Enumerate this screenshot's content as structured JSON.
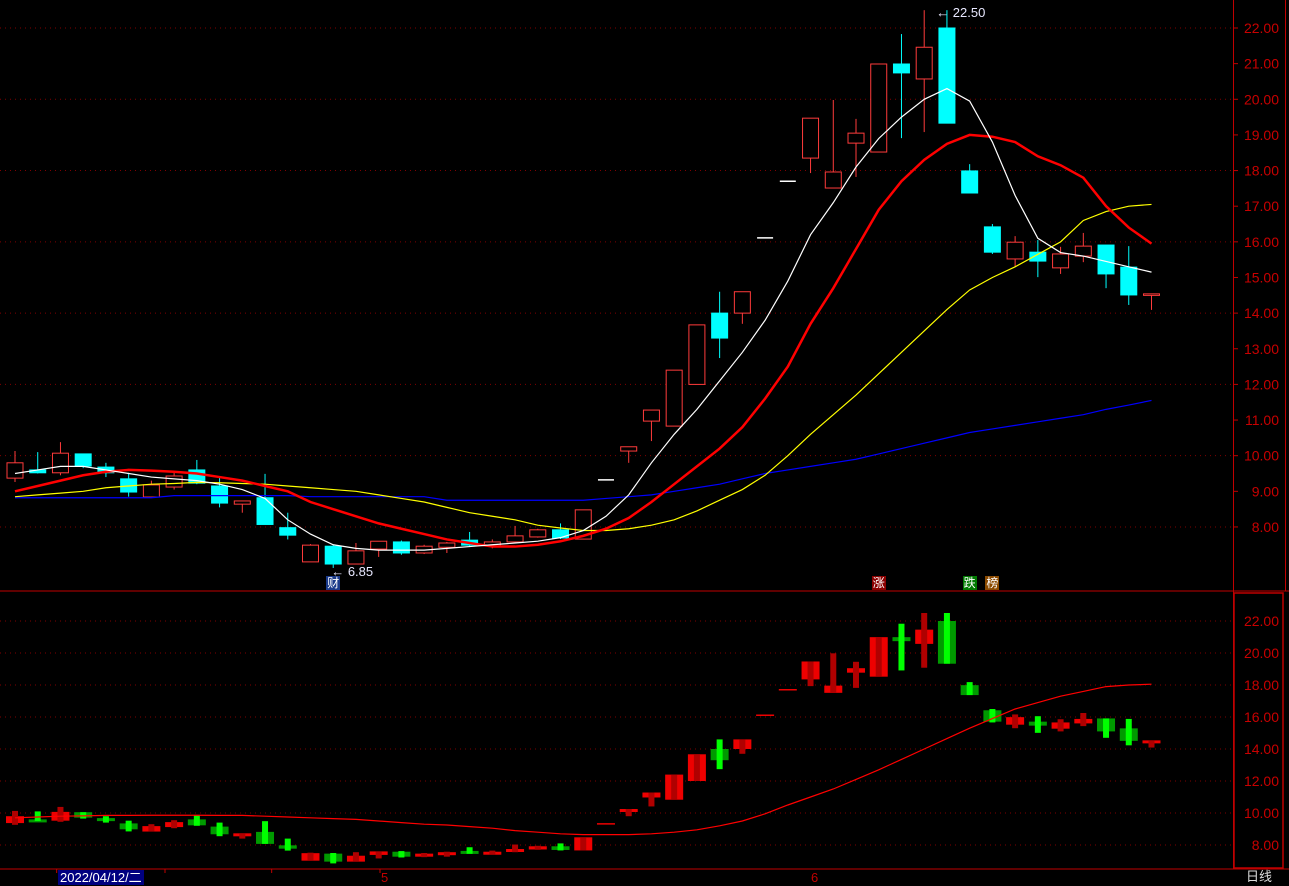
{
  "chart_data": {
    "type": "candlestick",
    "upper_axis": {
      "ticks": [
        "22.00",
        "21.00",
        "20.00",
        "19.00",
        "18.00",
        "17.00",
        "16.00",
        "15.00",
        "14.00",
        "13.00",
        "12.00",
        "11.00",
        "10.00",
        "9.00",
        "8.00"
      ],
      "ylim": [
        6.5,
        22.8
      ]
    },
    "lower_axis": {
      "ticks": [
        "22.00",
        "20.00",
        "18.00",
        "16.00",
        "14.00",
        "12.00",
        "10.00",
        "8.00"
      ],
      "ylim": [
        6.9,
        23.8
      ]
    },
    "x_labels": {
      "selected_date": "2022/04/12/二",
      "month_5": "5",
      "month_6": "6"
    },
    "period": "日线",
    "annotations": {
      "high_label": "22.50",
      "low_label": "6.85"
    },
    "badges": [
      {
        "text": "财",
        "color": "#1a3a8a",
        "index": 14
      },
      {
        "text": "涨",
        "color": "#8b0000",
        "index": 38
      },
      {
        "text": "跌",
        "color": "#007a00",
        "index": 42
      },
      {
        "text": "榜",
        "color": "#8b4a00",
        "index": 43
      }
    ],
    "colors": {
      "up": "#ff3b3b",
      "down": "#00ffff",
      "flat": "#ffffff",
      "ma5": "#ffffff",
      "ma10": "#ff0000",
      "ma20": "#ffff00",
      "ma60": "#0000ff",
      "grid": "#800000",
      "axis": "#c00000",
      "lower_up": "#ee0000",
      "lower_up_dark": "#b00000",
      "lower_down": "#009a00",
      "lower_down_bright": "#00ff00",
      "lower_line": "#ff0000"
    },
    "ohlc": [
      [
        9.37,
        10.13,
        9.26,
        9.8
      ],
      [
        9.6,
        10.1,
        9.5,
        9.52
      ],
      [
        9.52,
        10.38,
        9.45,
        10.07
      ],
      [
        10.05,
        10.05,
        9.65,
        9.71
      ],
      [
        9.68,
        9.8,
        9.4,
        9.52
      ],
      [
        9.35,
        9.52,
        8.85,
        8.98
      ],
      [
        8.84,
        9.3,
        8.84,
        9.18
      ],
      [
        9.12,
        9.55,
        9.05,
        9.43
      ],
      [
        9.6,
        9.88,
        9.2,
        9.23
      ],
      [
        9.15,
        9.4,
        8.55,
        8.67
      ],
      [
        8.64,
        8.73,
        8.4,
        8.73
      ],
      [
        8.82,
        9.49,
        8.07,
        8.07
      ],
      [
        7.98,
        8.4,
        7.65,
        7.77
      ],
      [
        7.02,
        7.52,
        7.02,
        7.49
      ],
      [
        7.46,
        7.5,
        6.85,
        6.96
      ],
      [
        6.96,
        7.55,
        6.96,
        7.33
      ],
      [
        7.38,
        7.6,
        7.16,
        7.6
      ],
      [
        7.58,
        7.62,
        7.22,
        7.27
      ],
      [
        7.27,
        7.5,
        7.24,
        7.46
      ],
      [
        7.43,
        7.58,
        7.27,
        7.55
      ],
      [
        7.63,
        7.86,
        7.45,
        7.49
      ],
      [
        7.47,
        7.65,
        7.4,
        7.58
      ],
      [
        7.58,
        8.03,
        7.55,
        7.75
      ],
      [
        7.72,
        7.95,
        7.7,
        7.92
      ],
      [
        7.92,
        8.1,
        7.66,
        7.69
      ],
      [
        7.66,
        8.48,
        7.66,
        8.48
      ],
      [
        9.32,
        9.32,
        9.32,
        9.32
      ],
      [
        10.13,
        10.25,
        9.8,
        10.25
      ],
      [
        10.97,
        11.28,
        10.41,
        11.28
      ],
      [
        10.83,
        12.4,
        10.83,
        12.4
      ],
      [
        12.0,
        13.67,
        12.0,
        13.67
      ],
      [
        14.0,
        14.6,
        12.74,
        13.3
      ],
      [
        14.0,
        14.6,
        13.7,
        14.6
      ],
      [
        16.11,
        16.11,
        16.11,
        16.11
      ],
      [
        17.7,
        17.7,
        17.7,
        17.7
      ],
      [
        18.35,
        19.47,
        17.93,
        19.47
      ],
      [
        17.51,
        19.98,
        17.51,
        17.96
      ],
      [
        18.77,
        19.45,
        17.82,
        19.05
      ],
      [
        18.52,
        20.99,
        18.52,
        20.99
      ],
      [
        20.99,
        21.83,
        18.91,
        20.74
      ],
      [
        20.57,
        22.5,
        19.08,
        21.46
      ],
      [
        22.0,
        22.5,
        19.33,
        19.33
      ],
      [
        17.99,
        18.18,
        17.37,
        17.37
      ],
      [
        16.42,
        16.5,
        15.66,
        15.71
      ],
      [
        15.52,
        16.16,
        15.3,
        15.99
      ],
      [
        15.71,
        16.05,
        15.01,
        15.46
      ],
      [
        15.27,
        15.86,
        15.1,
        15.66
      ],
      [
        15.6,
        16.25,
        15.43,
        15.88
      ],
      [
        15.91,
        15.91,
        14.7,
        15.1
      ],
      [
        15.29,
        15.88,
        14.23,
        14.51
      ],
      [
        14.54,
        14.54,
        14.09,
        14.54
      ]
    ],
    "ma5": [
      9.5,
      9.6,
      9.7,
      9.7,
      9.6,
      9.5,
      9.4,
      9.35,
      9.3,
      9.2,
      9.05,
      8.8,
      8.2,
      7.8,
      7.5,
      7.4,
      7.35,
      7.35,
      7.35,
      7.4,
      7.45,
      7.5,
      7.55,
      7.6,
      7.7,
      7.9,
      8.3,
      8.9,
      9.8,
      10.6,
      11.3,
      12.1,
      12.9,
      13.8,
      14.9,
      16.2,
      17.1,
      18.1,
      18.9,
      19.5,
      20.0,
      20.3,
      19.95,
      18.8,
      17.3,
      16.1,
      15.7,
      15.6,
      15.45,
      15.3,
      15.15
    ],
    "ma10": [
      9.0,
      9.15,
      9.3,
      9.45,
      9.55,
      9.6,
      9.58,
      9.55,
      9.5,
      9.4,
      9.3,
      9.15,
      9.0,
      8.7,
      8.5,
      8.3,
      8.1,
      7.95,
      7.8,
      7.65,
      7.55,
      7.45,
      7.45,
      7.5,
      7.6,
      7.75,
      7.95,
      8.25,
      8.7,
      9.2,
      9.7,
      10.2,
      10.8,
      11.6,
      12.5,
      13.7,
      14.7,
      15.8,
      16.9,
      17.7,
      18.3,
      18.75,
      19.0,
      18.95,
      18.8,
      18.4,
      18.15,
      17.8,
      17.0,
      16.4,
      15.95
    ],
    "ma20": [
      8.85,
      8.9,
      8.95,
      9.0,
      9.1,
      9.15,
      9.2,
      9.22,
      9.25,
      9.24,
      9.22,
      9.2,
      9.15,
      9.1,
      9.05,
      9.0,
      8.9,
      8.8,
      8.7,
      8.55,
      8.4,
      8.3,
      8.2,
      8.05,
      7.97,
      7.9,
      7.9,
      7.95,
      8.05,
      8.2,
      8.45,
      8.75,
      9.05,
      9.45,
      10.0,
      10.6,
      11.15,
      11.7,
      12.3,
      12.9,
      13.5,
      14.1,
      14.65,
      15.0,
      15.3,
      15.65,
      16.0,
      16.6,
      16.85,
      17.0,
      17.05
    ],
    "ma60": [
      8.82,
      8.82,
      8.82,
      8.82,
      8.82,
      8.82,
      8.82,
      8.88,
      8.88,
      8.88,
      8.88,
      8.88,
      8.88,
      8.85,
      8.85,
      8.85,
      8.85,
      8.85,
      8.85,
      8.75,
      8.75,
      8.75,
      8.75,
      8.75,
      8.75,
      8.75,
      8.8,
      8.85,
      8.9,
      9.0,
      9.1,
      9.2,
      9.35,
      9.5,
      9.6,
      9.7,
      9.8,
      9.9,
      10.05,
      10.2,
      10.35,
      10.5,
      10.65,
      10.75,
      10.85,
      10.95,
      11.05,
      11.15,
      11.3,
      11.42,
      11.55
    ],
    "lower_line": [
      9.7,
      9.75,
      9.8,
      9.82,
      9.85,
      9.85,
      9.86,
      9.86,
      9.86,
      9.85,
      9.85,
      9.8,
      9.75,
      9.7,
      9.65,
      9.6,
      9.5,
      9.4,
      9.3,
      9.25,
      9.15,
      9.05,
      8.9,
      8.8,
      8.7,
      8.65,
      8.65,
      8.65,
      8.7,
      8.8,
      8.95,
      9.2,
      9.5,
      9.95,
      10.5,
      11.0,
      11.5,
      12.1,
      12.7,
      13.35,
      14.0,
      14.65,
      15.3,
      15.9,
      16.5,
      16.9,
      17.3,
      17.6,
      17.9,
      18.0,
      18.05
    ]
  }
}
